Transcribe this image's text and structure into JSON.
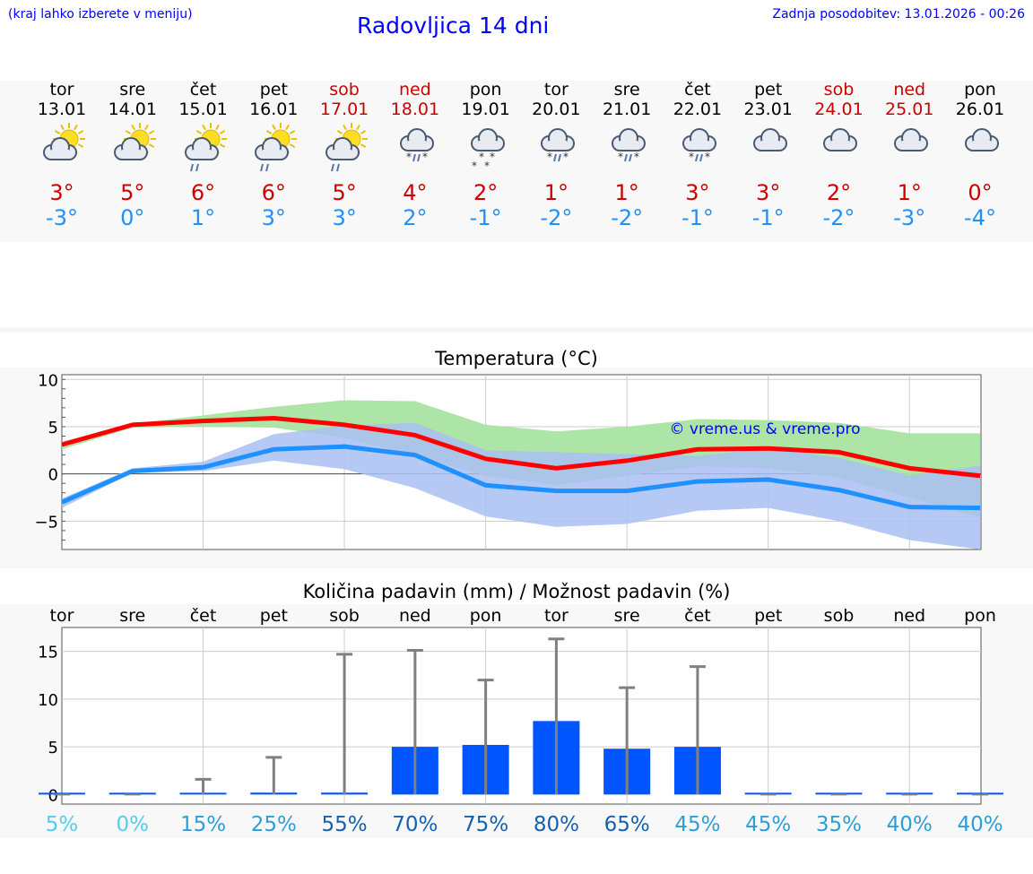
{
  "header": {
    "left_note": "(kraj lahko izberete v meniju)",
    "title": "Radovljica 14 dni",
    "updated": "Zadnja posodobitev: 13.01.2026 - 00:26"
  },
  "colors": {
    "link": "#0000ff",
    "max": "#cc0000",
    "min": "#1e90ff",
    "bar": "#0055ff",
    "weekend": "#cc0000"
  },
  "days": [
    {
      "name": "tor",
      "date": "13.01",
      "icon": "partly-sunny-cloud-icon",
      "tmax": "3°",
      "tmin": "-3°",
      "weekend": false
    },
    {
      "name": "sre",
      "date": "14.01",
      "icon": "partly-sunny-cloud-icon",
      "tmax": "5°",
      "tmin": "0°",
      "weekend": false
    },
    {
      "name": "čet",
      "date": "15.01",
      "icon": "sun-cloud-rain-icon",
      "tmax": "6°",
      "tmin": "1°",
      "weekend": false
    },
    {
      "name": "pet",
      "date": "16.01",
      "icon": "sun-cloud-rain-icon",
      "tmax": "6°",
      "tmin": "3°",
      "weekend": false
    },
    {
      "name": "sob",
      "date": "17.01",
      "icon": "sun-cloud-rain-icon",
      "tmax": "5°",
      "tmin": "3°",
      "weekend": true
    },
    {
      "name": "ned",
      "date": "18.01",
      "icon": "cloud-sleet-icon",
      "tmax": "4°",
      "tmin": "2°",
      "weekend": true
    },
    {
      "name": "pon",
      "date": "19.01",
      "icon": "cloud-snow-icon",
      "tmax": "2°",
      "tmin": "-1°",
      "weekend": false
    },
    {
      "name": "tor",
      "date": "20.01",
      "icon": "cloud-sleet-icon",
      "tmax": "1°",
      "tmin": "-2°",
      "weekend": false
    },
    {
      "name": "sre",
      "date": "21.01",
      "icon": "cloud-sleet-icon",
      "tmax": "1°",
      "tmin": "-2°",
      "weekend": false
    },
    {
      "name": "čet",
      "date": "22.01",
      "icon": "cloud-sleet-icon",
      "tmax": "3°",
      "tmin": "-1°",
      "weekend": false
    },
    {
      "name": "pet",
      "date": "23.01",
      "icon": "cloudy-icon",
      "tmax": "3°",
      "tmin": "-1°",
      "weekend": false
    },
    {
      "name": "sob",
      "date": "24.01",
      "icon": "cloudy-icon",
      "tmax": "2°",
      "tmin": "-2°",
      "weekend": true
    },
    {
      "name": "ned",
      "date": "25.01",
      "icon": "cloudy-icon",
      "tmax": "1°",
      "tmin": "-3°",
      "weekend": true
    },
    {
      "name": "pon",
      "date": "26.01",
      "icon": "cloudy-icon",
      "tmax": "0°",
      "tmin": "-4°",
      "weekend": false
    }
  ],
  "chart_data": [
    {
      "type": "line",
      "title": "Temperatura (°C)",
      "watermark": "© vreme.us & vreme.pro",
      "ylim": [
        -8,
        10.5
      ],
      "yticks": [
        10,
        5,
        0,
        -5
      ],
      "ytick_labels": [
        "10",
        "5",
        "0",
        "−5"
      ],
      "x": [
        0,
        1,
        2,
        3,
        4,
        5,
        6,
        7,
        8,
        9,
        10,
        11,
        12,
        13
      ],
      "series": [
        {
          "name": "max",
          "color": "#ff0000",
          "values": [
            3.1,
            5.2,
            5.6,
            5.9,
            5.2,
            4.1,
            1.6,
            0.6,
            1.4,
            2.6,
            2.7,
            2.3,
            0.6,
            -0.2
          ]
        },
        {
          "name": "min",
          "color": "#1e90ff",
          "values": [
            -3.0,
            0.3,
            0.7,
            2.6,
            2.9,
            2.0,
            -1.2,
            -1.8,
            -1.8,
            -0.8,
            -0.6,
            -1.7,
            -3.5,
            -3.6
          ]
        }
      ],
      "bands": [
        {
          "name": "max-range",
          "color": "#a8e4a0",
          "upper": [
            3.4,
            5.3,
            6.2,
            7.1,
            7.8,
            7.7,
            5.2,
            4.5,
            5.0,
            5.8,
            5.7,
            5.4,
            4.3,
            4.3
          ],
          "lower": [
            2.6,
            4.9,
            5.0,
            4.9,
            3.8,
            1.9,
            -0.2,
            -1.2,
            -0.2,
            0.8,
            0.6,
            -0.4,
            -2.5,
            -4.6
          ]
        },
        {
          "name": "min-range",
          "color": "#a9bff2",
          "upper": [
            -2.6,
            0.6,
            1.3,
            4.2,
            5.1,
            5.4,
            2.5,
            2.3,
            2.1,
            1.9,
            2.7,
            1.7,
            -0.2,
            0.9
          ],
          "lower": [
            -3.6,
            0.1,
            0.3,
            1.4,
            0.5,
            -1.5,
            -4.5,
            -5.6,
            -5.3,
            -3.9,
            -3.6,
            -5.0,
            -7.0,
            -8.0
          ]
        }
      ]
    },
    {
      "type": "bar",
      "title": "Količina padavin (mm) / Možnost padavin (%)",
      "ylim": [
        -1,
        17.5
      ],
      "yticks": [
        15,
        10,
        5,
        0
      ],
      "ytick_labels": [
        "15",
        "10",
        "5",
        "0"
      ],
      "categories": [
        "tor",
        "sre",
        "čet",
        "pet",
        "sob",
        "ned",
        "pon",
        "tor",
        "sre",
        "čet",
        "pet",
        "sob",
        "ned",
        "pon"
      ],
      "values": [
        0,
        0,
        0.1,
        0.2,
        0.2,
        5.0,
        5.2,
        7.7,
        4.8,
        5.0,
        0,
        0,
        0,
        0
      ],
      "err_high": [
        0,
        0,
        1.6,
        3.9,
        14.7,
        15.1,
        12.0,
        16.3,
        11.2,
        13.4,
        0,
        0,
        0,
        0
      ],
      "probability": [
        "5%",
        "0%",
        "15%",
        "25%",
        "55%",
        "70%",
        "75%",
        "80%",
        "65%",
        "45%",
        "45%",
        "35%",
        "40%",
        "40%"
      ],
      "probability_colors": [
        "#55ccee",
        "#55ccee",
        "#2e9ed8",
        "#2e9ed8",
        "#1560b0",
        "#1560b0",
        "#1560b0",
        "#1560b0",
        "#1560b0",
        "#2e9ed8",
        "#2e9ed8",
        "#2e9ed8",
        "#2e9ed8",
        "#2e9ed8"
      ]
    }
  ]
}
